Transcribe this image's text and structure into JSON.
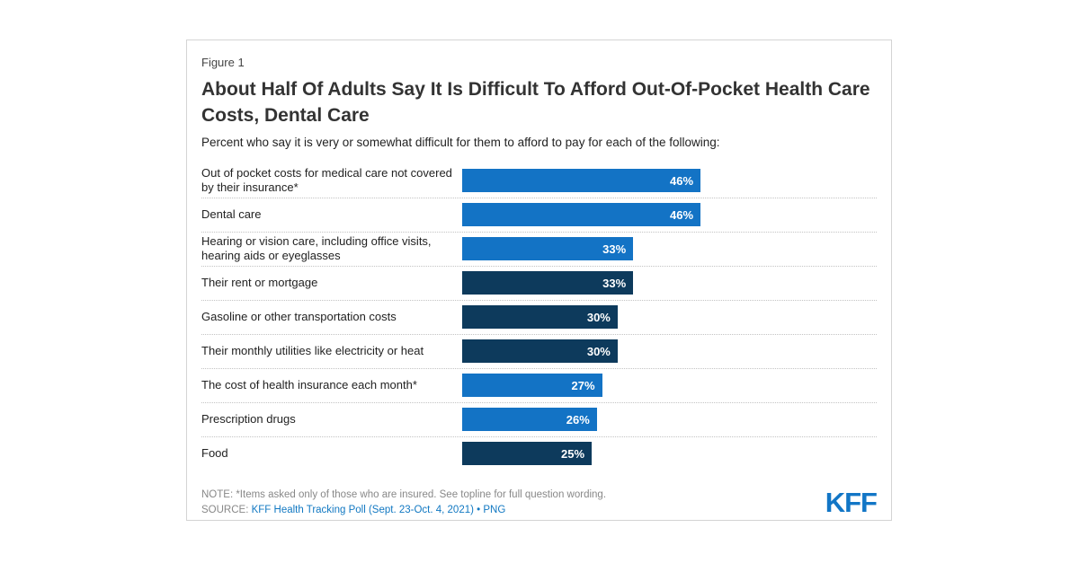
{
  "figure_label": "Figure 1",
  "title": "About Half Of Adults Say It Is Difficult To Afford Out-Of-Pocket Health Care Costs, Dental Care",
  "subtitle": "Percent who say it is very or somewhat difficult for them to afford to pay for each of the following:",
  "chart_data": {
    "type": "bar",
    "orientation": "horizontal",
    "title": "About Half Of Adults Say It Is Difficult To Afford Out-Of-Pocket Health Care Costs, Dental Care",
    "subtitle": "Percent who say it is very or somewhat difficult for them to afford to pay for each of the following:",
    "categories": [
      "Out of pocket costs for medical care not covered by their insurance*",
      "Dental care",
      "Hearing or vision care, including office visits, hearing aids or eyeglasses",
      "Their rent or mortgage",
      "Gasoline or other transportation costs",
      "Their monthly utilities like electricity or heat",
      "The cost of health insurance each month*",
      "Prescription drugs",
      "Food"
    ],
    "values": [
      46,
      46,
      33,
      33,
      30,
      30,
      27,
      26,
      25
    ],
    "value_suffix": "%",
    "xlim": [
      0,
      80
    ],
    "grid": false,
    "legend": "none",
    "bar_color_keys": [
      "blue",
      "blue",
      "blue",
      "navy",
      "navy",
      "navy",
      "blue",
      "blue",
      "navy"
    ],
    "palette": {
      "blue": "#1373C5",
      "navy": "#0D3A5C"
    },
    "value_label_color": "#FFFFFF",
    "separator_style": "dotted"
  },
  "footer": {
    "note": "NOTE: *Items asked only of those who are insured. See topline for full question wording.",
    "source_prefix": "SOURCE: ",
    "source_link": "KFF Health Tracking Poll (Sept. 23-Oct. 4, 2021)",
    "separator": " • ",
    "png_link": "PNG",
    "logo": "KFF"
  }
}
